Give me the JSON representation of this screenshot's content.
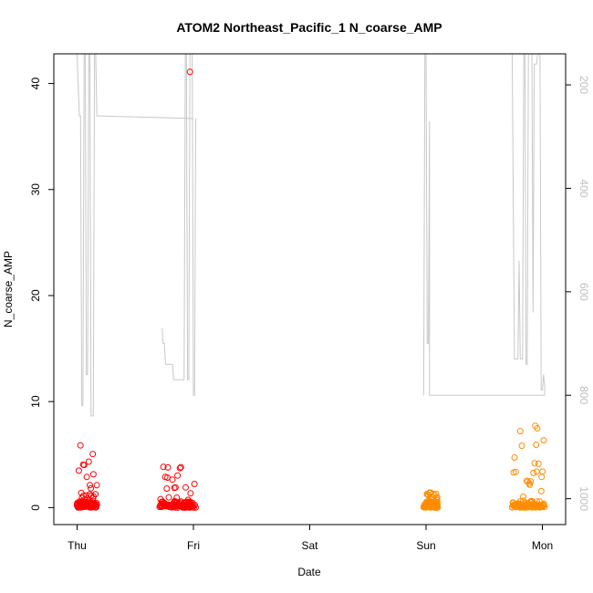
{
  "chart_data": {
    "type": "scatter",
    "title": "ATOM2 Northeast_Pacific_1 N_coarse_AMP",
    "xlabel": "Date",
    "ylabel": "N_coarse_AMP",
    "x_tick_labels": [
      "Thu",
      "Fri",
      "Sat",
      "Sun",
      "Mon"
    ],
    "xlim_days": [
      -0.2,
      4.2
    ],
    "ylim": [
      -1.6,
      42.8
    ],
    "y_ticks": [
      0,
      10,
      20,
      30,
      40
    ],
    "y2_ticks": [
      200,
      400,
      600,
      800,
      1000
    ],
    "y2lim_reversed": [
      1050,
      140
    ],
    "colors": {
      "early_points": "#ff0000",
      "late_points": "#ff8c00",
      "altitude_line": "#c8c8c8",
      "right_axis_text": "#bebebe",
      "axis": "#000000"
    },
    "scatter_clusters": [
      {
        "name": "",
        "color": "early",
        "x_start": 0.0,
        "x_end": 0.17,
        "y_max": 7.0
      },
      {
        "name": "",
        "color": "early",
        "x_start": 0.71,
        "x_end": 1.02,
        "y_max": 4.3
      },
      {
        "name": "",
        "color": "late",
        "x_start": 2.98,
        "x_end": 3.1,
        "y_max": 1.5
      },
      {
        "name": "",
        "color": "late",
        "x_start": 3.74,
        "x_end": 4.02,
        "y_max": 8.2
      }
    ],
    "outliers": [
      {
        "x": 0.97,
        "y": 41.1,
        "color": "early"
      }
    ],
    "altitude_segments": [
      [
        [
          0.0,
          140
        ],
        [
          0.02,
          260
        ],
        [
          0.03,
          260
        ],
        [
          0.04,
          820
        ],
        [
          0.05,
          820
        ],
        [
          0.06,
          140
        ],
        [
          0.07,
          140
        ],
        [
          0.08,
          760
        ],
        [
          0.09,
          760
        ],
        [
          0.1,
          140
        ],
        [
          0.11,
          140
        ],
        [
          0.12,
          840
        ],
        [
          0.14,
          840
        ],
        [
          0.15,
          140
        ],
        [
          0.16,
          140
        ],
        [
          0.17,
          260
        ],
        [
          1.0,
          265
        ]
      ],
      [
        [
          0.73,
          670
        ],
        [
          0.74,
          700
        ],
        [
          0.75,
          700
        ],
        [
          0.76,
          740
        ],
        [
          0.82,
          740
        ],
        [
          0.83,
          770
        ],
        [
          0.92,
          770
        ],
        [
          0.93,
          140
        ],
        [
          0.94,
          140
        ],
        [
          0.95,
          770
        ],
        [
          0.96,
          770
        ],
        [
          0.97,
          140
        ],
        [
          0.99,
          140
        ],
        [
          1.0,
          800
        ],
        [
          1.01,
          800
        ],
        [
          1.02,
          265
        ]
      ],
      [
        [
          2.98,
          800
        ],
        [
          2.99,
          140
        ],
        [
          3.0,
          140
        ],
        [
          3.01,
          700
        ],
        [
          3.02,
          700
        ],
        [
          3.03,
          270
        ],
        [
          3.03,
          800
        ],
        [
          4.02,
          800
        ]
      ],
      [
        [
          3.74,
          140
        ],
        [
          3.76,
          730
        ],
        [
          3.79,
          730
        ],
        [
          3.8,
          540
        ],
        [
          3.81,
          730
        ],
        [
          3.83,
          730
        ],
        [
          3.84,
          140
        ],
        [
          3.85,
          140
        ],
        [
          3.86,
          740
        ],
        [
          3.87,
          740
        ],
        [
          3.88,
          140
        ],
        [
          3.89,
          140
        ],
        [
          3.9,
          140
        ],
        [
          3.91,
          140
        ],
        [
          3.92,
          640
        ],
        [
          3.93,
          160
        ],
        [
          3.95,
          160
        ],
        [
          3.96,
          140
        ],
        [
          3.98,
          140
        ],
        [
          3.99,
          790
        ],
        [
          4.0,
          790
        ],
        [
          4.01,
          760
        ],
        [
          4.02,
          780
        ],
        [
          4.02,
          800
        ]
      ]
    ]
  }
}
